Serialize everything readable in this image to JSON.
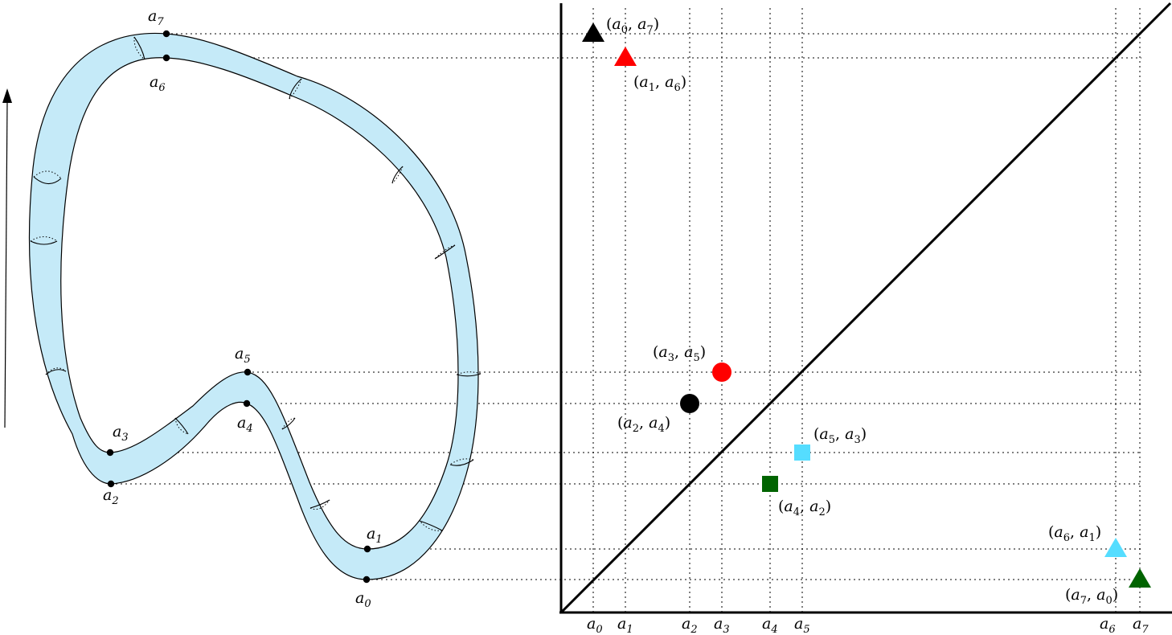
{
  "surface_labels": {
    "a7": {
      "base": "a",
      "sub": "7"
    },
    "a6": {
      "base": "a",
      "sub": "6"
    },
    "a5": {
      "base": "a",
      "sub": "5"
    },
    "a4": {
      "base": "a",
      "sub": "4"
    },
    "a3": {
      "base": "a",
      "sub": "3"
    },
    "a2": {
      "base": "a",
      "sub": "2"
    },
    "a1": {
      "base": "a",
      "sub": "1"
    },
    "a0": {
      "base": "a",
      "sub": "0"
    }
  },
  "axis_ticks": [
    {
      "base": "a",
      "sub": "0"
    },
    {
      "base": "a",
      "sub": "1"
    },
    {
      "base": "a",
      "sub": "2"
    },
    {
      "base": "a",
      "sub": "3"
    },
    {
      "base": "a",
      "sub": "4"
    },
    {
      "base": "a",
      "sub": "5"
    },
    {
      "base": "a",
      "sub": "6"
    },
    {
      "base": "a",
      "sub": "7"
    }
  ],
  "points": [
    {
      "label": "(a0, a7)",
      "birth": "a0",
      "death": "a7",
      "shape": "triangle",
      "color": "#000000"
    },
    {
      "label": "(a1, a6)",
      "birth": "a1",
      "death": "a6",
      "shape": "triangle",
      "color": "#ff0000"
    },
    {
      "label": "(a3, a5)",
      "birth": "a3",
      "death": "a5",
      "shape": "circle",
      "color": "#ff0000"
    },
    {
      "label": "(a2, a4)",
      "birth": "a2",
      "death": "a4",
      "shape": "circle",
      "color": "#000000"
    },
    {
      "label": "(a5, a3)",
      "birth": "a5",
      "death": "a3",
      "shape": "square",
      "color": "#55ddff"
    },
    {
      "label": "(a4, a2)",
      "birth": "a4",
      "death": "a2",
      "shape": "square",
      "color": "#006400"
    },
    {
      "label": "(a6, a1)",
      "birth": "a6",
      "death": "a1",
      "shape": "triangle",
      "color": "#55ddff"
    },
    {
      "label": "(a7, a0)",
      "birth": "a7",
      "death": "a0",
      "shape": "triangle",
      "color": "#006400"
    }
  ],
  "colors": {
    "tube_fill": "#c5eaf8",
    "outline": "#000000"
  }
}
